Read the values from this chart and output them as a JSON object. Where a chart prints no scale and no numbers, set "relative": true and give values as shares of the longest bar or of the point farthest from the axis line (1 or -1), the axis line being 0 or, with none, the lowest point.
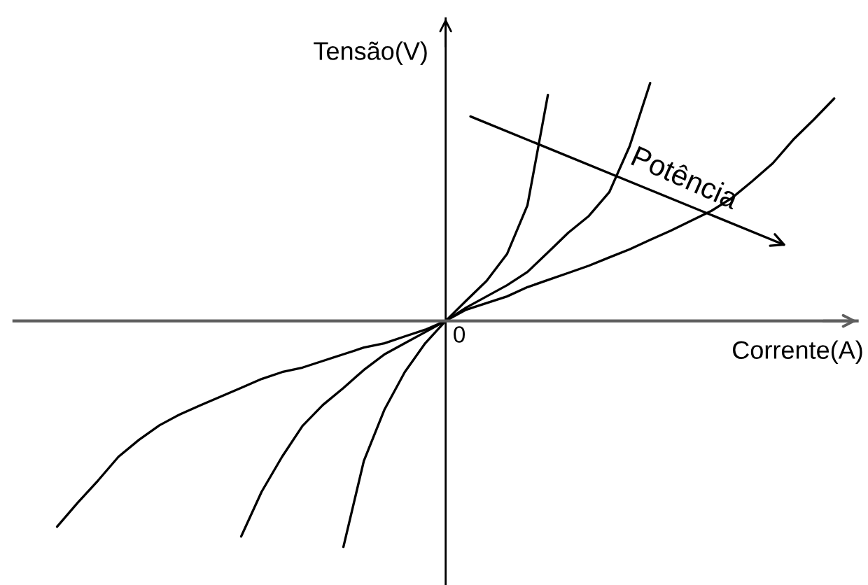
{
  "chart_data": {
    "type": "line",
    "relative": true,
    "xlabel": "Corrente(A)",
    "ylabel": "Tensão(V)",
    "line_style": "solid",
    "categories": [
      null,
      null,
      null,
      null,
      null,
      null,
      null,
      null,
      null,
      null,
      null,
      null,
      null,
      null,
      null,
      null,
      null,
      null,
      null,
      null,
      null,
      null,
      null,
      null,
      null,
      null,
      null,
      null,
      null,
      null,
      null,
      null,
      null,
      null,
      null,
      null,
      null,
      null,
      null
    ],
    "series": [
      {
        "color": "#000000",
        "values": [
          null,
          null,
          null,
          null,
          null,
          null,
          null,
          null,
          null,
          null,
          null,
          null,
          null,
          null,
          -0.95,
          -0.588,
          -0.374,
          -0.215,
          -0.094,
          0,
          0.085,
          0.168,
          0.281,
          0.486,
          0.95,
          null,
          null,
          null,
          null,
          null,
          null,
          null,
          null,
          null,
          null,
          null,
          null,
          null,
          null
        ]
      },
      {
        "color": "#000000",
        "values": [
          null,
          null,
          null,
          null,
          null,
          null,
          null,
          null,
          null,
          -0.906,
          -0.718,
          -0.571,
          -0.441,
          -0.353,
          -0.282,
          -0.206,
          -0.141,
          -0.094,
          -0.047,
          0,
          0.056,
          0.103,
          0.15,
          0.206,
          0.288,
          0.371,
          0.441,
          0.541,
          0.735,
          1.0,
          null,
          null,
          null,
          null,
          null,
          null,
          null,
          null,
          null
        ]
      },
      {
        "color": "#000000",
        "values": [
          -0.865,
          -0.765,
          -0.671,
          -0.571,
          -0.5,
          -0.439,
          -0.393,
          -0.355,
          -0.318,
          -0.281,
          -0.244,
          -0.215,
          -0.196,
          -0.168,
          -0.14,
          -0.112,
          -0.094,
          -0.065,
          -0.037,
          0,
          0.047,
          0.075,
          0.103,
          0.142,
          0.172,
          0.202,
          0.232,
          0.267,
          0.301,
          0.341,
          0.379,
          0.421,
          0.463,
          0.517,
          0.588,
          0.663,
          0.762,
          0.846,
          0.935
        ]
      }
    ],
    "annotations": [
      "0",
      "Potência"
    ]
  }
}
